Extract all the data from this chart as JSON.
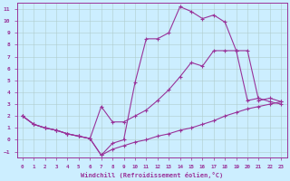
{
  "xlabel": "Windchill (Refroidissement éolien,°C)",
  "bg_color": "#cceeff",
  "line_color": "#993399",
  "grid_color": "#aaddcc",
  "xlim": [
    -0.5,
    23.5
  ],
  "ylim": [
    -1.5,
    11.5
  ],
  "xticks": [
    0,
    1,
    2,
    3,
    4,
    5,
    6,
    7,
    8,
    9,
    10,
    11,
    12,
    13,
    14,
    15,
    16,
    17,
    18,
    19,
    20,
    21,
    22,
    23
  ],
  "yticks": [
    -1,
    0,
    1,
    2,
    3,
    4,
    5,
    6,
    7,
    8,
    9,
    10,
    11
  ],
  "line1_x": [
    0,
    1,
    2,
    3,
    4,
    5,
    6,
    7,
    8,
    9,
    10,
    11,
    12,
    13,
    14,
    15,
    16,
    17,
    18,
    19,
    20,
    21,
    22,
    23
  ],
  "line1_y": [
    2.0,
    1.3,
    1.0,
    0.8,
    0.5,
    0.3,
    0.1,
    -1.3,
    -0.8,
    -0.5,
    -0.2,
    0.0,
    0.3,
    0.5,
    0.8,
    1.0,
    1.3,
    1.6,
    2.0,
    2.3,
    2.6,
    2.8,
    3.0,
    3.2
  ],
  "line2_x": [
    0,
    1,
    2,
    3,
    4,
    5,
    6,
    7,
    8,
    9,
    10,
    11,
    12,
    13,
    14,
    15,
    16,
    17,
    18,
    19,
    20,
    21,
    22,
    23
  ],
  "line2_y": [
    2.0,
    1.3,
    1.0,
    0.8,
    0.5,
    0.3,
    0.1,
    2.8,
    1.5,
    1.5,
    2.0,
    2.5,
    3.3,
    4.2,
    5.3,
    6.5,
    6.2,
    7.5,
    7.5,
    7.5,
    7.5,
    3.3,
    3.5,
    3.2
  ],
  "line3_x": [
    0,
    1,
    2,
    3,
    4,
    5,
    6,
    7,
    8,
    9,
    10,
    11,
    12,
    13,
    14,
    15,
    16,
    17,
    18,
    19,
    20,
    21,
    22,
    23
  ],
  "line3_y": [
    2.0,
    1.3,
    1.0,
    0.8,
    0.5,
    0.3,
    0.1,
    -1.3,
    -0.3,
    0.0,
    4.8,
    8.5,
    8.5,
    9.0,
    11.2,
    10.8,
    10.2,
    10.5,
    9.9,
    7.5,
    3.3,
    3.5,
    3.2,
    3.0
  ]
}
